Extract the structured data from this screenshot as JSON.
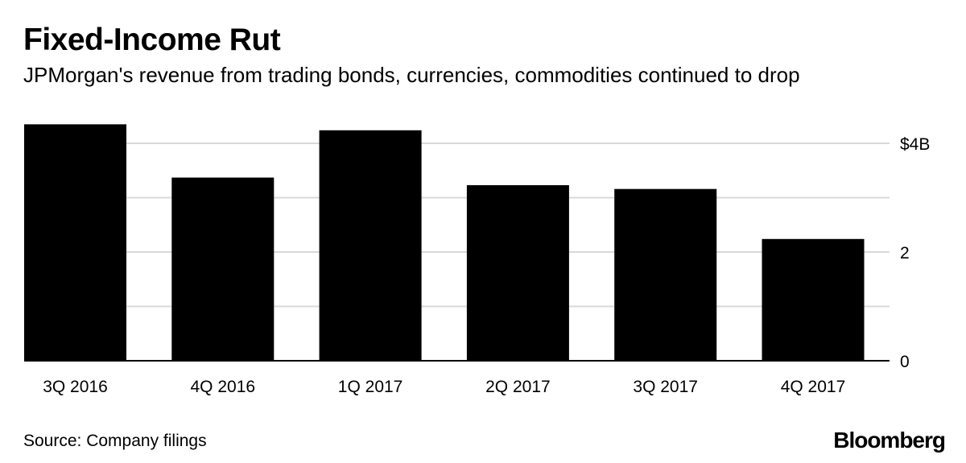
{
  "title": "Fixed-Income Rut",
  "subtitle": "JPMorgan's revenue from trading bonds, currencies, commodities continued to drop",
  "source": "Source: Company filings",
  "brand": "Bloomberg",
  "colors": {
    "bar": "#000000",
    "grid": "#d9d9d9",
    "axis": "#000000",
    "text": "#000000"
  },
  "chart_data": {
    "type": "bar",
    "title": "Fixed-Income Rut",
    "subtitle": "JPMorgan's revenue from trading bonds, currencies, commodities continued to drop",
    "xlabel": "",
    "ylabel": "",
    "categories": [
      "3Q 2016",
      "4Q 2016",
      "1Q 2017",
      "2Q 2017",
      "3Q 2017",
      "4Q 2017"
    ],
    "values": [
      4.35,
      3.37,
      4.24,
      3.23,
      3.16,
      2.24
    ],
    "unit": "billions of US dollars",
    "ylim": [
      0,
      4.5
    ],
    "yticks": [
      0,
      2,
      4
    ],
    "ytick_labels": [
      "0",
      "2",
      "$4B"
    ],
    "minor_grid_ticks": [
      1,
      3
    ],
    "grid": true,
    "y_axis_position": "right",
    "legend": "none"
  }
}
